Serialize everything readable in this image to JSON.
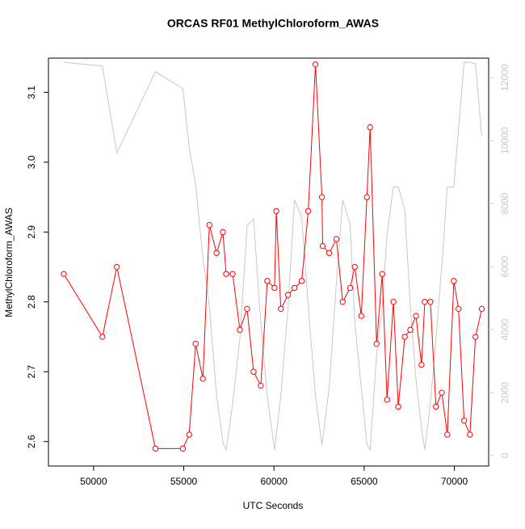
{
  "chart_data": {
    "type": "line",
    "title": "ORCAS RF01 MethylChloroform_AWAS",
    "x_label": "UTC Seconds",
    "y_label": "MethylChloroform_AWAS",
    "xlim": [
      47500,
      71900
    ],
    "xticks": [
      50000,
      55000,
      60000,
      65000,
      70000
    ],
    "ylim": [
      2.565,
      3.149
    ],
    "yticks": [
      2.6,
      2.7,
      2.8,
      2.9,
      {
        "value": 3,
        "label": "3.0"
      },
      3.1
    ],
    "y2lim": [
      -330,
      12620
    ],
    "y2ticks": [
      0,
      2000,
      4000,
      6000,
      8000,
      10000,
      12000
    ],
    "series": [
      {
        "color": "#c8c8c8",
        "axis": "y2",
        "markers": false,
        "x": [
          48350,
          50490,
          51290,
          53430,
          54950,
          55300,
          55660,
          56060,
          56420,
          56820,
          57170,
          57350,
          57710,
          58110,
          58510,
          58870,
          59270,
          59630,
          60030,
          60380,
          60780,
          61140,
          61540,
          61900,
          62300,
          62660,
          63060,
          63460,
          63810,
          64220,
          64480,
          64840,
          65150,
          65330,
          65690,
          66000,
          66270,
          66620,
          66890,
          67250,
          67560,
          67870,
          68180,
          68360,
          68670,
          68980,
          69300,
          69610,
          69970,
          70230,
          70540,
          70860,
          71170,
          71520
        ],
        "values": [
          12490,
          12370,
          9610,
          12190,
          11650,
          9790,
          8590,
          6270,
          4730,
          1900,
          410,
          180,
          1650,
          3700,
          7300,
          7510,
          4210,
          1900,
          180,
          1900,
          4730,
          8120,
          7560,
          4730,
          1900,
          330,
          2160,
          5500,
          8120,
          7350,
          4210,
          2160,
          360,
          180,
          3190,
          4730,
          7040,
          8530,
          8530,
          7810,
          4730,
          2420,
          870,
          180,
          1650,
          3700,
          6020,
          8530,
          8530,
          10390,
          12490,
          12490,
          12440,
          10130
        ]
      },
      {
        "color": "#ff0000",
        "markers": true,
        "x": [
          48350,
          50490,
          51290,
          53430,
          54950,
          55300,
          55660,
          56060,
          56420,
          56820,
          57170,
          57350,
          57710,
          58110,
          58510,
          58870,
          59270,
          59630,
          60030,
          60130,
          60380,
          60780,
          61140,
          61540,
          61900,
          62300,
          62660,
          62700,
          63060,
          63460,
          63810,
          64220,
          64480,
          64840,
          65150,
          65330,
          65690,
          66000,
          66270,
          66620,
          66890,
          67250,
          67560,
          67870,
          68180,
          68360,
          68670,
          68980,
          69300,
          69610,
          69970,
          70230,
          70540,
          70860,
          71170,
          71520
        ],
        "values": [
          2.84,
          2.75,
          2.85,
          2.59,
          2.59,
          2.61,
          2.74,
          2.69,
          2.91,
          2.87,
          2.9,
          2.84,
          2.84,
          2.76,
          2.79,
          2.7,
          2.68,
          2.83,
          2.82,
          2.93,
          2.79,
          2.81,
          2.82,
          2.83,
          2.93,
          3.14,
          2.95,
          2.88,
          2.87,
          2.89,
          2.8,
          2.82,
          2.85,
          2.78,
          2.95,
          3.05,
          2.74,
          2.84,
          2.66,
          2.8,
          2.65,
          2.75,
          2.76,
          2.78,
          2.71,
          2.8,
          2.8,
          2.65,
          2.67,
          2.61,
          2.83,
          2.79,
          2.63,
          2.61,
          2.75,
          2.79
        ]
      }
    ]
  }
}
